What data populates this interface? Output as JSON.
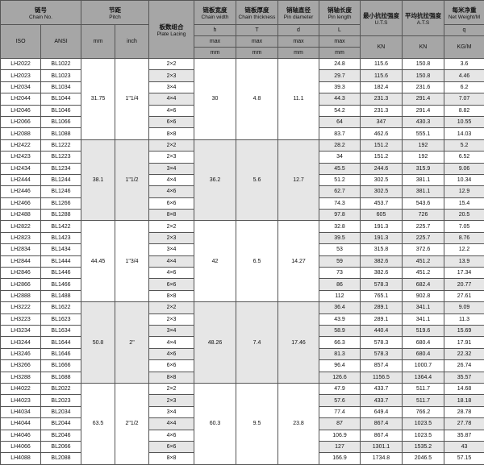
{
  "headers": {
    "chain_no": {
      "zh": "链号",
      "en": "Chain No."
    },
    "pitch": {
      "zh": "节距",
      "en": "Pitch"
    },
    "lacing": {
      "zh": "板数组合",
      "en": "Plate Lacing"
    },
    "width": {
      "zh": "链板宽度",
      "en": "Chain width",
      "sym": "h",
      "lim": "max",
      "unit": "mm"
    },
    "thick": {
      "zh": "链板厚度",
      "en": "Chain thickness",
      "sym": "T",
      "lim": "max",
      "unit": "mm"
    },
    "pind": {
      "zh": "销轴直径",
      "en": "Pin diameter",
      "sym": "d",
      "lim": "max",
      "unit": "mm"
    },
    "pinl": {
      "zh": "销轴长度",
      "en": "Pin length",
      "sym": "L",
      "lim": "max",
      "unit": "mm"
    },
    "uts": {
      "zh": "最小抗拉强度",
      "en": "U.T.S",
      "unit": "KN"
    },
    "ats": {
      "zh": "平均抗拉强度",
      "en": "A.T.S",
      "unit": "KN"
    },
    "weight": {
      "zh": "每米净重",
      "en": "Net Weight/M",
      "sym": "q",
      "unit": "KG/M"
    },
    "iso": "ISO",
    "ansi": "ANSI",
    "mm": "mm",
    "inch": "inch"
  },
  "groups": [
    {
      "pitch_mm": "31.75",
      "pitch_inch": "1\"1/4",
      "h": "30",
      "T": "4.8",
      "d": "11.1",
      "rows": [
        [
          "LH2022",
          "BL1022",
          "2×2",
          "24.8",
          "115.6",
          "150.8",
          "3.6"
        ],
        [
          "LH2023",
          "BL1023",
          "2×3",
          "29.7",
          "115.6",
          "150.8",
          "4.46"
        ],
        [
          "LH2034",
          "BL1034",
          "3×4",
          "39.3",
          "182.4",
          "231.6",
          "6.2"
        ],
        [
          "LH2044",
          "BL1044",
          "4×4",
          "44.3",
          "231.3",
          "291.4",
          "7.07"
        ],
        [
          "LH2046",
          "BL1046",
          "4×6",
          "54.2",
          "231.3",
          "291.4",
          "8.82"
        ],
        [
          "LH2066",
          "BL1066",
          "6×6",
          "64",
          "347",
          "430.3",
          "10.55"
        ],
        [
          "LH2088",
          "BL1088",
          "8×8",
          "83.7",
          "462.6",
          "555.1",
          "14.03"
        ]
      ]
    },
    {
      "pitch_mm": "38.1",
      "pitch_inch": "1\"1/2",
      "h": "36.2",
      "T": "5.6",
      "d": "12.7",
      "rows": [
        [
          "LH2422",
          "BL1222",
          "2×2",
          "28.2",
          "151.2",
          "192",
          "5.2"
        ],
        [
          "LH2423",
          "BL1223",
          "2×3",
          "34",
          "151.2",
          "192",
          "6.52"
        ],
        [
          "LH2434",
          "BL1234",
          "3×4",
          "45.5",
          "244.6",
          "315.9",
          "9.06"
        ],
        [
          "LH2444",
          "BL1244",
          "4×4",
          "51.2",
          "302.5",
          "381.1",
          "10.34"
        ],
        [
          "LH2446",
          "BL1246",
          "4×6",
          "62.7",
          "302.5",
          "381.1",
          "12.9"
        ],
        [
          "LH2466",
          "BL1266",
          "6×6",
          "74.3",
          "453.7",
          "543.6",
          "15.4"
        ],
        [
          "LH2488",
          "BL1288",
          "8×8",
          "97.8",
          "605",
          "726",
          "20.5"
        ]
      ]
    },
    {
      "pitch_mm": "44.45",
      "pitch_inch": "1\"3/4",
      "h": "42",
      "T": "6.5",
      "d": "14.27",
      "rows": [
        [
          "LH2822",
          "BL1422",
          "2×2",
          "32.8",
          "191.3",
          "225.7",
          "7.05"
        ],
        [
          "LH2823",
          "BL1423",
          "2×3",
          "39.5",
          "191.3",
          "225.7",
          "8.76"
        ],
        [
          "LH2834",
          "BL1434",
          "3×4",
          "53",
          "315.8",
          "372.6",
          "12.2"
        ],
        [
          "LH2844",
          "BL1444",
          "4×4",
          "59",
          "382.6",
          "451.2",
          "13.9"
        ],
        [
          "LH2846",
          "BL1446",
          "4×6",
          "73",
          "382.6",
          "451.2",
          "17.34"
        ],
        [
          "LH2866",
          "BL1466",
          "6×6",
          "86",
          "578.3",
          "682.4",
          "20.77"
        ],
        [
          "LH2888",
          "BL1488",
          "8×8",
          "112",
          "765.1",
          "902.8",
          "27.61"
        ]
      ]
    },
    {
      "pitch_mm": "50.8",
      "pitch_inch": "2\"",
      "h": "48.26",
      "T": "7.4",
      "d": "17.46",
      "rows": [
        [
          "LH3222",
          "BL1622",
          "2×2",
          "36.4",
          "289.1",
          "341.1",
          "9.09"
        ],
        [
          "LH3223",
          "BL1623",
          "2×3",
          "43.9",
          "289.1",
          "341.1",
          "11.3"
        ],
        [
          "LH3234",
          "BL1634",
          "3×4",
          "58.9",
          "440.4",
          "519.6",
          "15.69"
        ],
        [
          "LH3244",
          "BL1644",
          "4×4",
          "66.3",
          "578.3",
          "680.4",
          "17.91"
        ],
        [
          "LH3246",
          "BL1646",
          "4×6",
          "81.3",
          "578.3",
          "680.4",
          "22.32"
        ],
        [
          "LH3266",
          "BL1666",
          "6×6",
          "96.4",
          "857.4",
          "1000.7",
          "26.74"
        ],
        [
          "LH3288",
          "BL1688",
          "8×8",
          "126.6",
          "1156.5",
          "1364.4",
          "35.57"
        ]
      ]
    },
    {
      "pitch_mm": "63.5",
      "pitch_inch": "2\"1/2",
      "h": "60.3",
      "T": "9.5",
      "d": "23.8",
      "rows": [
        [
          "LH4022",
          "BL2022",
          "2×2",
          "47.9",
          "433.7",
          "511.7",
          "14.68"
        ],
        [
          "LH4023",
          "BL2023",
          "2×3",
          "57.6",
          "433.7",
          "511.7",
          "18.18"
        ],
        [
          "LH4034",
          "BL2034",
          "3×4",
          "77.4",
          "649.4",
          "766.2",
          "28.78"
        ],
        [
          "LH4044",
          "BL2044",
          "4×4",
          "87",
          "867.4",
          "1023.5",
          "27.78"
        ],
        [
          "LH4046",
          "BL2046",
          "4×6",
          "106.9",
          "867.4",
          "1023.5",
          "35.87"
        ],
        [
          "LH4066",
          "BL2066",
          "6×6",
          "127",
          "1301.1",
          "1535.2",
          "43"
        ],
        [
          "LH4088",
          "BL2088",
          "8×8",
          "166.9",
          "1734.8",
          "2046.5",
          "57.15"
        ]
      ]
    }
  ]
}
